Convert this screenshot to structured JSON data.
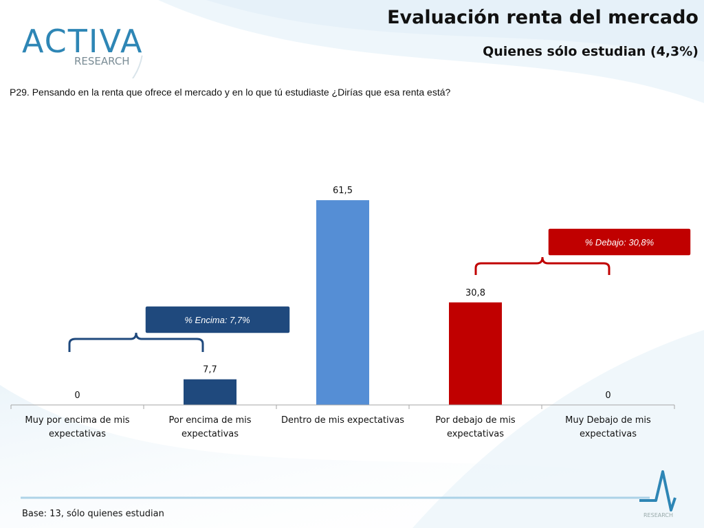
{
  "header": {
    "logo_text_main": "ACTIVA",
    "logo_text_sub": "RESEARCH",
    "title": "Evaluación renta del mercado",
    "subtitle": "Quienes sólo estudian (4,3%)"
  },
  "question": "P29. Pensando en la renta que ofrece el mercado y en lo que tú estudiaste ¿Dirías que esa renta está?",
  "callouts": {
    "encima": "% Encima:  7,7%",
    "debajo": "% Debajo:  30,8%"
  },
  "footer": {
    "base": "Base: 13, sólo quienes estudian",
    "corner_logo_text": "RESEARCH"
  },
  "colors": {
    "dark_blue": "#1F497D",
    "light_blue": "#558ED5",
    "red": "#C00000"
  },
  "chart_data": {
    "type": "bar",
    "categories": [
      [
        "Muy por encima de mis",
        "expectativas"
      ],
      [
        "Por encima de mis",
        "expectativas"
      ],
      [
        "Dentro de mis expectativas"
      ],
      [
        "Por debajo de mis",
        "expectativas"
      ],
      [
        "Muy Debajo de mis",
        "expectativas"
      ]
    ],
    "values": [
      0,
      7.7,
      61.5,
      30.8,
      0
    ],
    "value_labels": [
      "0",
      "7,7",
      "61,5",
      "30,8",
      "0"
    ],
    "bar_colors": [
      "#1F497D",
      "#1F497D",
      "#558ED5",
      "#C00000",
      "#C00000"
    ],
    "ylim": [
      0,
      70
    ],
    "grid": false,
    "legend": "none"
  }
}
